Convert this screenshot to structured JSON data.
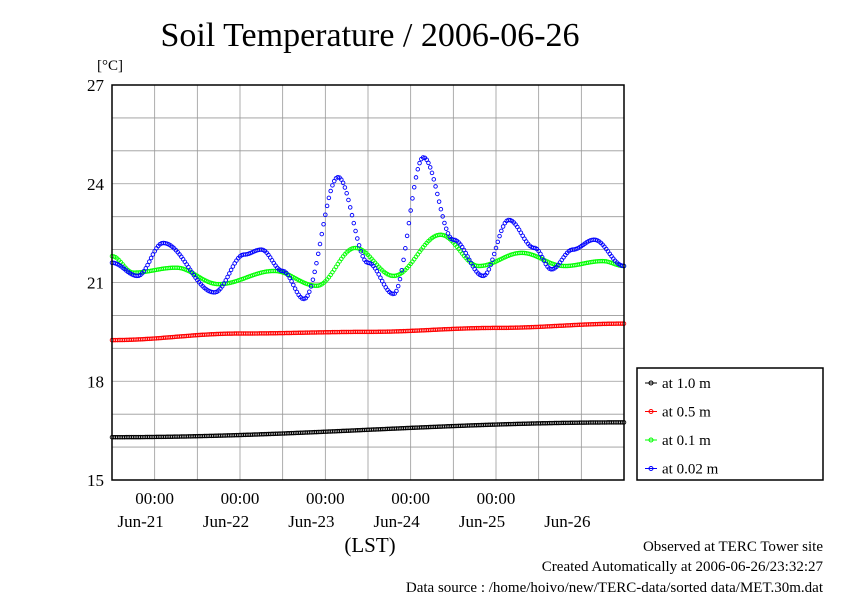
{
  "chart_data": {
    "type": "line",
    "title": "Soil Temperature / 2006-06-26",
    "ylabel": "[°C]",
    "xlabel": "(LST)",
    "ylim": [
      15,
      27
    ],
    "y_ticks": [
      "15",
      "18",
      "21",
      "24",
      "27"
    ],
    "x_range_days": [
      20.0,
      26.0
    ],
    "x_time_ticks": [
      {
        "day": 20.5,
        "label": "00:00"
      },
      {
        "day": 21.5,
        "label": "00:00"
      },
      {
        "day": 22.5,
        "label": "00:00"
      },
      {
        "day": 23.5,
        "label": "00:00"
      },
      {
        "day": 24.5,
        "label": "00:00"
      }
    ],
    "x_date_labels": [
      {
        "day": 20.5,
        "label": "Jun-21"
      },
      {
        "day": 21.5,
        "label": "Jun-22"
      },
      {
        "day": 22.5,
        "label": "Jun-23"
      },
      {
        "day": 23.5,
        "label": "Jun-24"
      },
      {
        "day": 24.5,
        "label": "Jun-25"
      },
      {
        "day": 25.5,
        "label": "Jun-26"
      }
    ],
    "grid": true,
    "legend_position": "right",
    "series": [
      {
        "name": "at 1.0 m",
        "color": "#000000",
        "x": [
          20.0,
          26.0
        ],
        "y": [
          16.3,
          16.75
        ]
      },
      {
        "name": "at 0.5 m",
        "color": "#ff0000",
        "x": [
          20.0,
          21.5,
          23.0,
          24.5,
          26.0
        ],
        "y": [
          19.25,
          19.45,
          19.5,
          19.62,
          19.75
        ]
      },
      {
        "name": "at 0.1 m",
        "color": "#00ff00",
        "x": [
          20.0,
          20.25,
          20.75,
          21.25,
          21.9,
          22.4,
          22.85,
          23.3,
          23.85,
          24.3,
          24.8,
          25.3,
          25.75,
          26.0
        ],
        "y": [
          21.8,
          21.3,
          21.45,
          20.95,
          21.35,
          20.9,
          22.05,
          21.2,
          22.45,
          21.5,
          21.9,
          21.5,
          21.65,
          21.5
        ]
      },
      {
        "name": "at 0.02 m",
        "color": "#0000ff",
        "x": [
          20.0,
          20.3,
          20.6,
          21.2,
          21.55,
          21.75,
          22.0,
          22.25,
          22.65,
          23.0,
          23.3,
          23.65,
          24.0,
          24.35,
          24.65,
          24.95,
          25.15,
          25.4,
          25.65,
          26.0
        ],
        "y": [
          21.6,
          21.2,
          22.2,
          20.7,
          21.85,
          22.0,
          21.35,
          20.5,
          24.2,
          21.6,
          20.65,
          24.8,
          22.3,
          21.2,
          22.9,
          22.05,
          21.4,
          22.0,
          22.3,
          21.5
        ]
      }
    ]
  },
  "footer": {
    "site": "Observed at TERC Tower site",
    "created": "Created Automatically at 2006-06-26/23:32:27",
    "source": "Data source : /home/hoivo/new/TERC-data/sorted  data/MET.30m.dat"
  }
}
